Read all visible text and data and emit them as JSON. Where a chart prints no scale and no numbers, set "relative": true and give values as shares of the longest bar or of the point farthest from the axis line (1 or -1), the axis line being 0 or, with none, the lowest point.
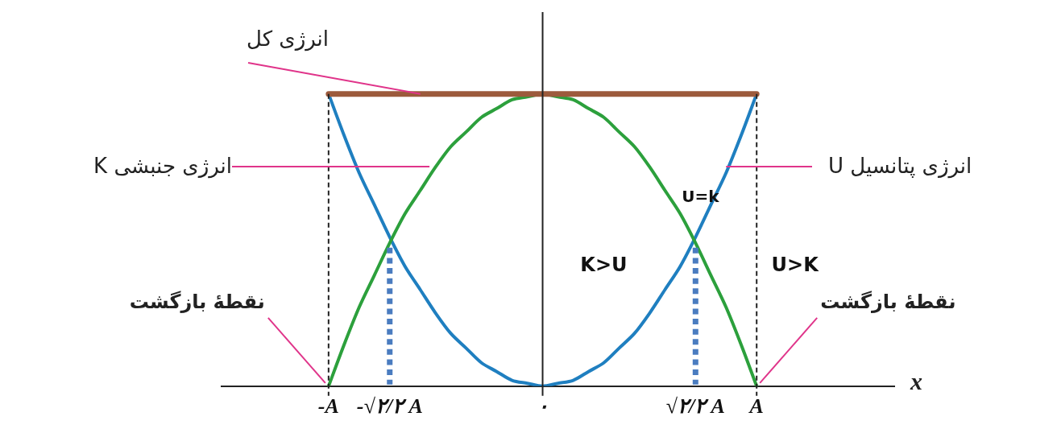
{
  "chart_data": {
    "type": "line",
    "relative": true,
    "xlabel": "x",
    "categories": [
      null,
      null,
      null,
      null,
      null,
      null,
      null,
      "-A",
      null,
      null,
      null,
      "-√۲/۲ A",
      null,
      null,
      null,
      null,
      null,
      null,
      null,
      null,
      null,
      "۰",
      null,
      null,
      null,
      null,
      null,
      null,
      null,
      null,
      null,
      "√۲/۲ A",
      null,
      null,
      null,
      "A",
      null,
      null,
      null,
      null,
      null,
      null,
      null,
      null,
      null
    ],
    "grid": false,
    "legend": false,
    "marker": "none",
    "series": [
      {
        "name": "انرژی کل",
        "color": "#9c5a3c",
        "values": [
          null,
          null,
          null,
          null,
          null,
          null,
          null,
          1,
          1,
          1,
          1,
          1,
          1,
          1,
          1,
          1,
          1,
          1,
          1,
          1,
          1,
          1,
          1,
          1,
          1,
          1,
          1,
          1,
          1,
          1,
          1,
          1,
          1,
          1,
          1,
          1,
          null,
          null,
          null,
          null,
          null,
          null,
          null,
          null,
          null
        ]
      },
      {
        "name": "انرژی جنبشی K",
        "color": "#2ca03c",
        "values": [
          null,
          null,
          null,
          null,
          null,
          null,
          null,
          0,
          0.14,
          0.27,
          0.38,
          0.49,
          0.59,
          0.67,
          0.75,
          0.82,
          0.87,
          0.92,
          0.95,
          0.98,
          0.99,
          1,
          0.99,
          0.98,
          0.95,
          0.92,
          0.87,
          0.82,
          0.75,
          0.67,
          0.59,
          0.49,
          0.38,
          0.27,
          0.14,
          0,
          null,
          null,
          null,
          null,
          null,
          null,
          null,
          null,
          null
        ]
      },
      {
        "name": "انرژی پتانسیل U",
        "color": "#1f7fc0",
        "values": [
          null,
          null,
          null,
          null,
          null,
          null,
          null,
          1,
          0.86,
          0.73,
          0.62,
          0.51,
          0.41,
          0.33,
          0.25,
          0.18,
          0.13,
          0.08,
          0.05,
          0.02,
          0.01,
          0,
          0.01,
          0.02,
          0.05,
          0.08,
          0.13,
          0.18,
          0.25,
          0.33,
          0.41,
          0.51,
          0.62,
          0.73,
          0.86,
          1,
          null,
          null,
          null,
          null,
          null,
          null,
          null,
          null,
          null
        ]
      }
    ],
    "ref_lines": [
      {
        "axis": "x",
        "value": "-A",
        "line_style": "dashed",
        "color": "#222222"
      },
      {
        "axis": "x",
        "value": "-√۲/۲ A",
        "line_style": "dotted",
        "color": "#4a7cc0"
      },
      {
        "axis": "x",
        "value": "۰",
        "line_style": "solid",
        "color": "#222222"
      },
      {
        "axis": "x",
        "value": "√۲/۲ A",
        "line_style": "dotted",
        "color": "#4a7cc0"
      },
      {
        "axis": "x",
        "value": "A",
        "line_style": "dashed",
        "color": "#222222"
      }
    ],
    "annotations": [
      {
        "text": "نقطهٔ بازگشت",
        "x": "-A",
        "y": 0
      },
      {
        "text": "نقطهٔ بازگشت",
        "x": "A",
        "y": 0
      },
      {
        "text": "U=k",
        "x": "√۲/۲ A",
        "y": 0.5
      },
      "K>U",
      "U>K"
    ]
  }
}
